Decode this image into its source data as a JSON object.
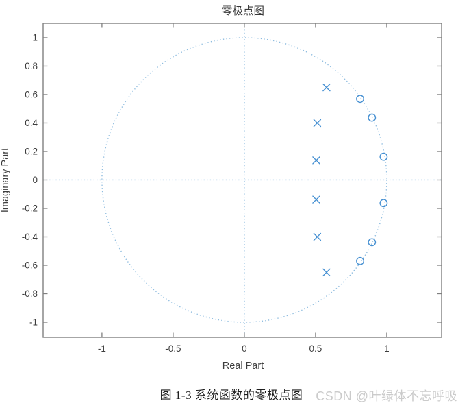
{
  "watermark": {
    "text": "CSDN @叶绿体不忘呼吸"
  },
  "caption": {
    "text": "图 1-3 系统函数的零极点图"
  },
  "chart_data": {
    "type": "scatter",
    "title": "零极点图",
    "xlabel": "Real Part",
    "ylabel": "Imaginary Part",
    "xlim": [
      -1.413,
      1.385
    ],
    "ylim": [
      -1.106,
      1.101
    ],
    "x_ticks": [
      -1,
      -0.5,
      0,
      0.5,
      1
    ],
    "x_tick_labels": [
      "-1",
      "-0.5",
      "0",
      "0.5",
      "1"
    ],
    "y_ticks": [
      1,
      0.8,
      0.6,
      0.4,
      0.2,
      0,
      -0.2,
      -0.4,
      -0.6,
      -0.8,
      -1
    ],
    "y_tick_labels": [
      "1",
      "0.8",
      "0.6",
      "0.4",
      "0.2",
      "0",
      "-0.2",
      "-0.4",
      "-0.6",
      "-0.8",
      "-1"
    ],
    "grid": false,
    "legend": null,
    "unit_circle": {
      "shown": true,
      "center": [
        0,
        0
      ],
      "radius": 1,
      "style": "dotted"
    },
    "axis_lines": {
      "real_axis_dotted": true,
      "imag_axis_dotted": true
    },
    "series": [
      {
        "name": "zeros",
        "marker": "o",
        "points": [
          [
            0.813,
            0.57
          ],
          [
            0.896,
            0.438
          ],
          [
            0.978,
            0.163
          ],
          [
            0.978,
            -0.163
          ],
          [
            0.896,
            -0.438
          ],
          [
            0.813,
            -0.57
          ]
        ]
      },
      {
        "name": "poles",
        "marker": "x",
        "points": [
          [
            0.577,
            0.65
          ],
          [
            0.512,
            0.4
          ],
          [
            0.505,
            0.138
          ],
          [
            0.505,
            -0.138
          ],
          [
            0.512,
            -0.4
          ],
          [
            0.577,
            -0.65
          ]
        ]
      }
    ],
    "colors": {
      "marker": "#4690d2",
      "dotted_line": "#8ebcdf",
      "axis_frame": "#808080",
      "tick_label": "#3d3d3d",
      "title": "#383838",
      "caption": "#1e1e1e",
      "watermark": "#cbcbcb"
    }
  }
}
